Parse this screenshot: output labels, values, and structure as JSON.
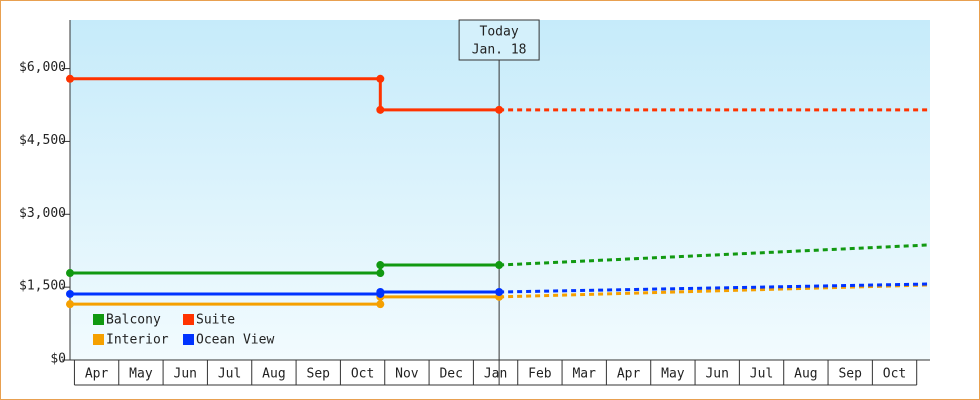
{
  "chart_data": {
    "type": "line",
    "categories": [
      "Apr",
      "May",
      "Jun",
      "Jul",
      "Aug",
      "Sep",
      "Oct",
      "Nov",
      "Dec",
      "Jan",
      "Feb",
      "Mar",
      "Apr",
      "May",
      "Jun",
      "Jul",
      "Aug",
      "Sep",
      "Oct"
    ],
    "xlim": [
      -0.1,
      19.3
    ],
    "ylim": [
      0,
      7000
    ],
    "yticks": [
      {
        "value": 0,
        "label": "$0"
      },
      {
        "value": 1500,
        "label": "$1,500"
      },
      {
        "value": 3000,
        "label": "$3,000"
      },
      {
        "value": 4500,
        "label": "$4,500"
      },
      {
        "value": 6000,
        "label": "$6,000"
      }
    ],
    "today": {
      "x": 9.58,
      "label": "Today",
      "date": "Jan. 18"
    },
    "series": [
      {
        "name": "Balcony",
        "color": "#119911",
        "x": [
          -0.1,
          6.9,
          6.9,
          9.58,
          19.3
        ],
        "values": [
          1790,
          1790,
          1955,
          1955,
          2370
        ]
      },
      {
        "name": "Suite",
        "color": "#ff3300",
        "x": [
          -0.1,
          6.9,
          6.9,
          9.58,
          19.3
        ],
        "values": [
          5790,
          5790,
          5150,
          5150,
          5150
        ]
      },
      {
        "name": "Interior",
        "color": "#f5a000",
        "x": [
          -0.1,
          6.9,
          6.9,
          9.58,
          19.3
        ],
        "values": [
          1150,
          1150,
          1300,
          1300,
          1545
        ]
      },
      {
        "name": "Ocean View",
        "color": "#0033ff",
        "x": [
          -0.1,
          6.9,
          6.9,
          9.58,
          19.3
        ],
        "values": [
          1360,
          1360,
          1400,
          1400,
          1565
        ]
      }
    ]
  }
}
